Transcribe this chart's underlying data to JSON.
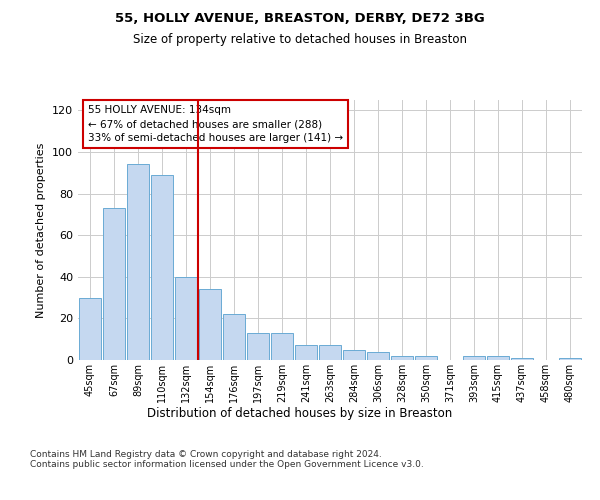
{
  "title_line1": "55, HOLLY AVENUE, BREASTON, DERBY, DE72 3BG",
  "title_line2": "Size of property relative to detached houses in Breaston",
  "xlabel": "Distribution of detached houses by size in Breaston",
  "ylabel": "Number of detached properties",
  "footnote": "Contains HM Land Registry data © Crown copyright and database right 2024.\nContains public sector information licensed under the Open Government Licence v3.0.",
  "annotation_line1": "55 HOLLY AVENUE: 134sqm",
  "annotation_line2": "← 67% of detached houses are smaller (288)",
  "annotation_line3": "33% of semi-detached houses are larger (141) →",
  "bar_labels": [
    "45sqm",
    "67sqm",
    "89sqm",
    "110sqm",
    "132sqm",
    "154sqm",
    "176sqm",
    "197sqm",
    "219sqm",
    "241sqm",
    "263sqm",
    "284sqm",
    "306sqm",
    "328sqm",
    "350sqm",
    "371sqm",
    "393sqm",
    "415sqm",
    "437sqm",
    "458sqm",
    "480sqm"
  ],
  "bar_values": [
    30,
    73,
    94,
    89,
    40,
    34,
    22,
    13,
    13,
    7,
    7,
    5,
    4,
    2,
    2,
    0,
    2,
    2,
    1,
    0,
    1
  ],
  "bar_color": "#c5d8f0",
  "bar_edge_color": "#6aaad4",
  "vline_color": "#cc0000",
  "annotation_box_color": "#cc0000",
  "ylim": [
    0,
    125
  ],
  "yticks": [
    0,
    20,
    40,
    60,
    80,
    100,
    120
  ],
  "background_color": "#ffffff",
  "grid_color": "#cccccc"
}
